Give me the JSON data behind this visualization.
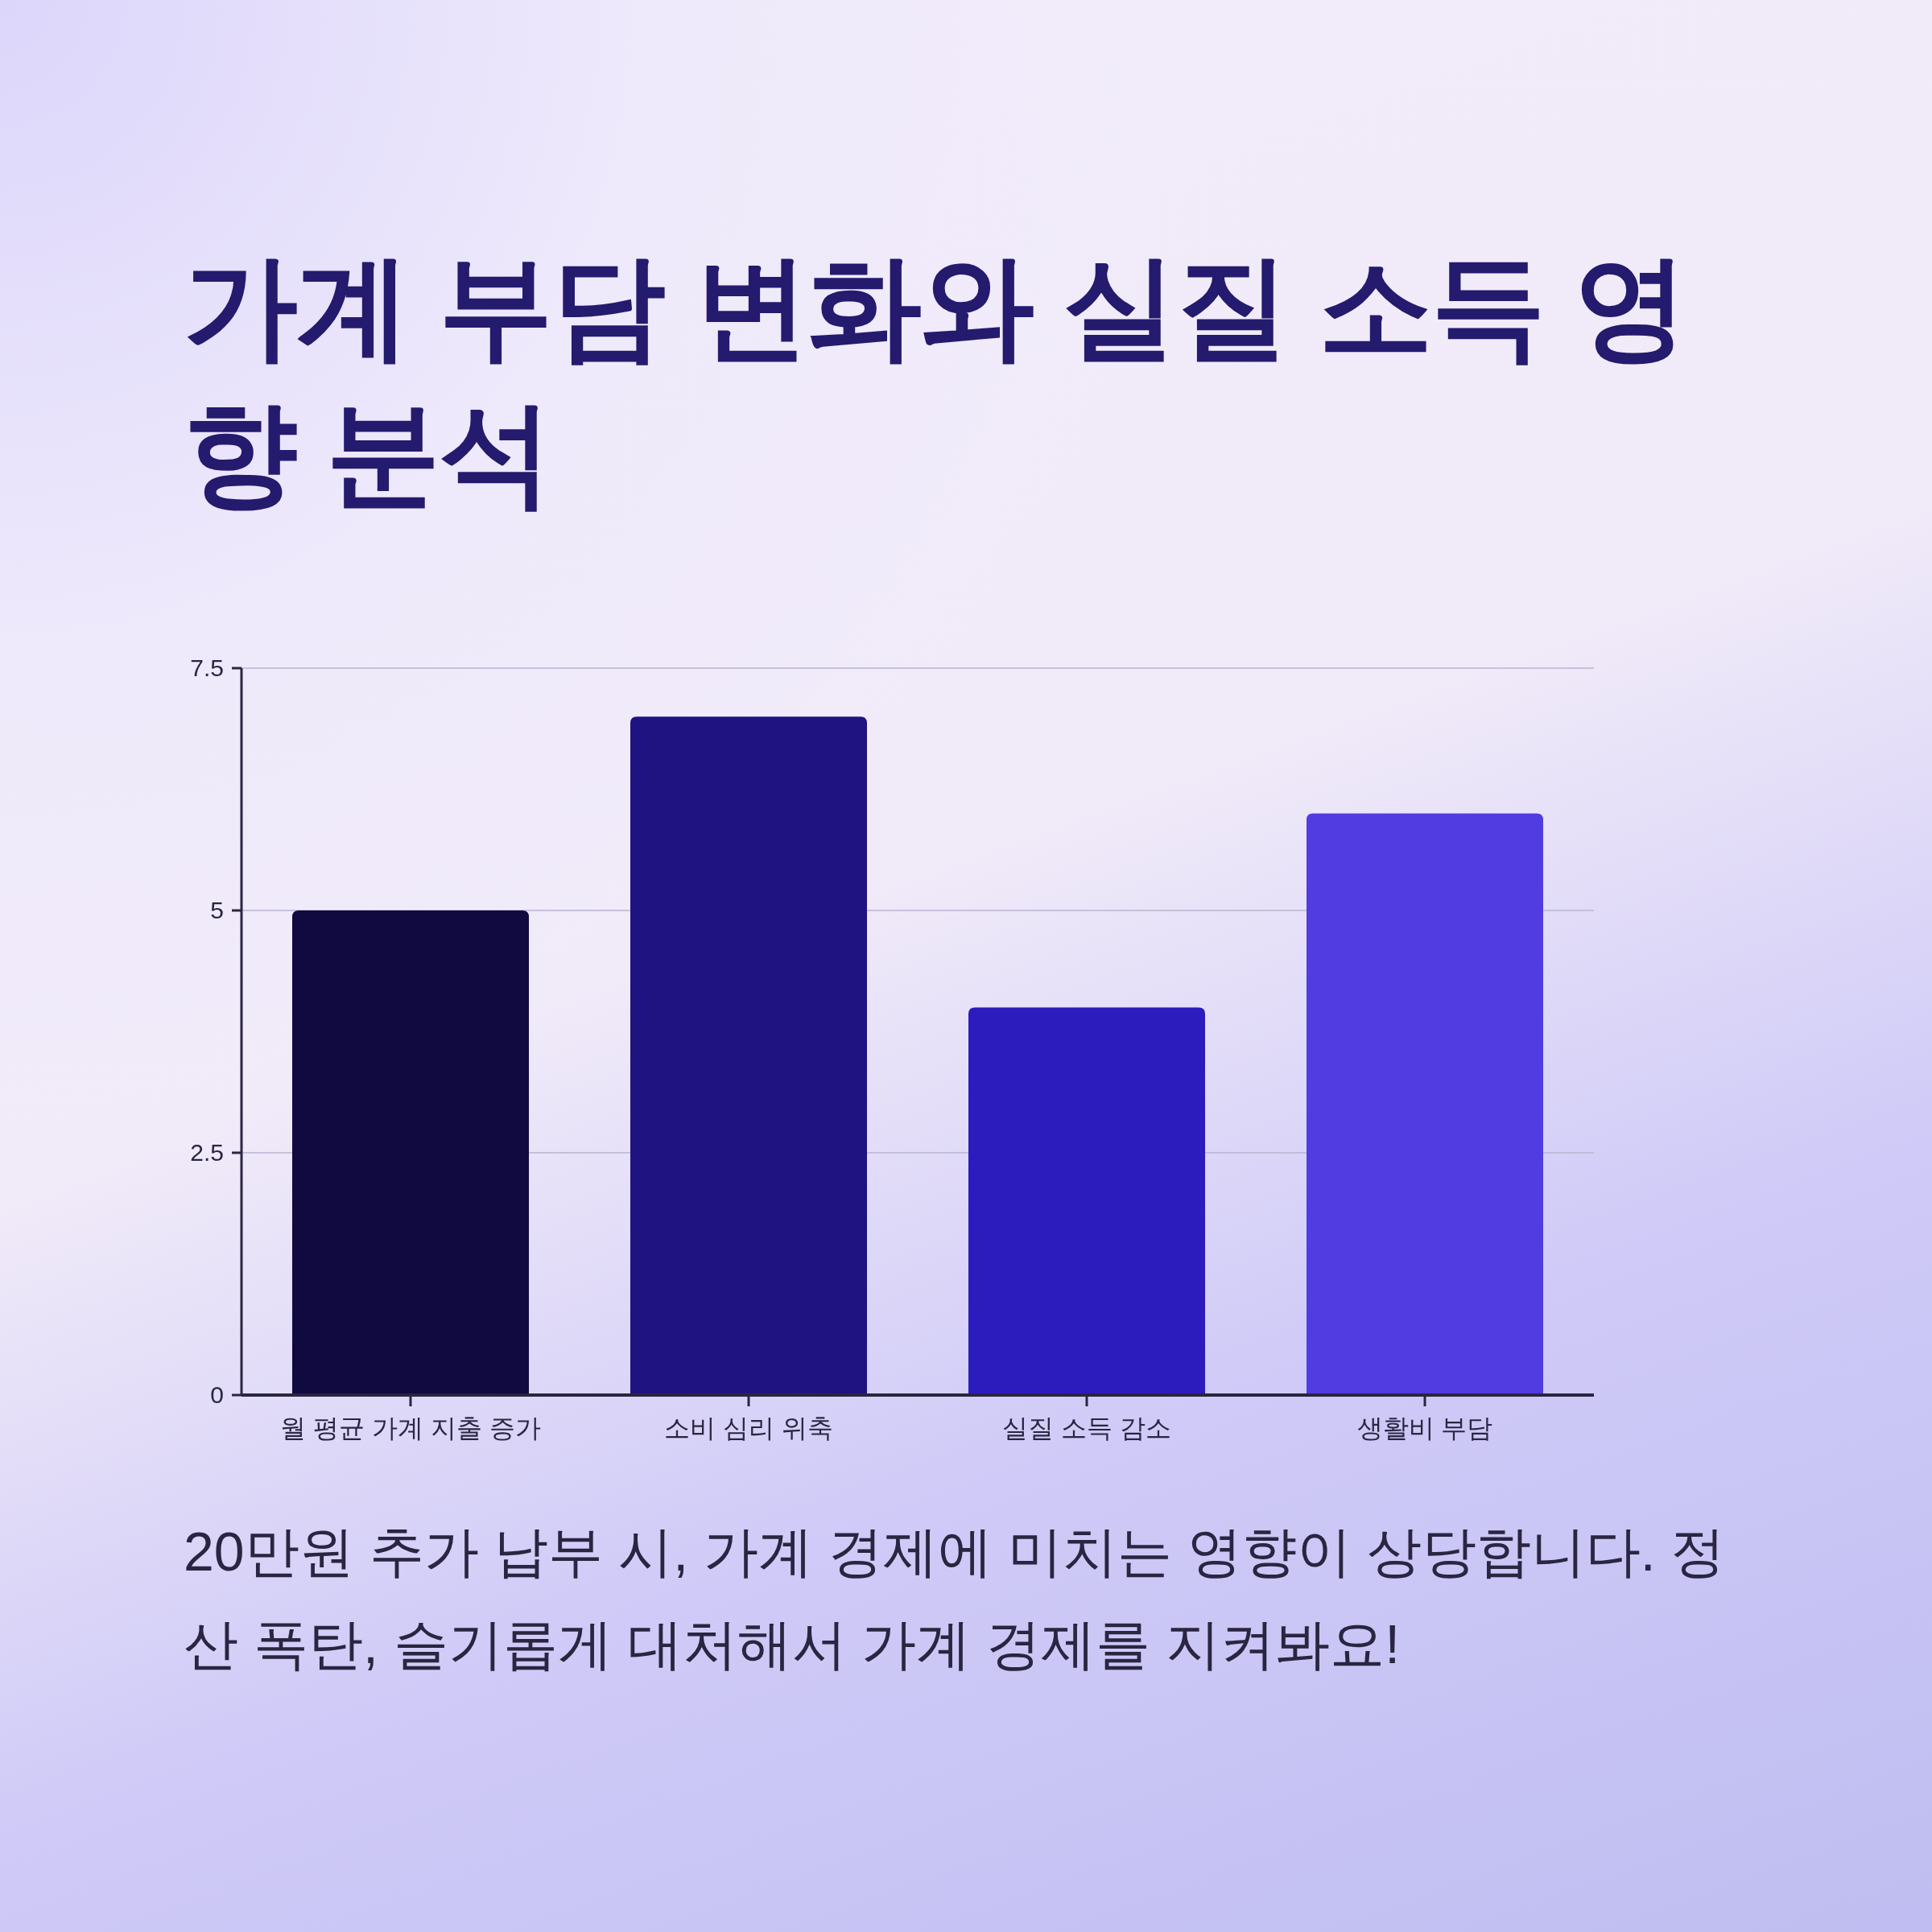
{
  "chart_data": {
    "type": "bar",
    "title": "가계 부담 변화와 실질 소득 영향 분석",
    "categories": [
      "월 평균 가계 지출 증가",
      "소비 심리 위축",
      "실질 소득 감소",
      "생활비 부담"
    ],
    "values": [
      5,
      7,
      4,
      6
    ],
    "colors": [
      "#110a40",
      "#1e1380",
      "#2c1bbd",
      "#503ce0"
    ],
    "ylim": [
      0,
      7.5
    ],
    "yticks": [
      0,
      2.5,
      5,
      7.5
    ],
    "grid": "y",
    "annotations": [
      "20만원 추가 납부 시, 가계 경제에 미치는 영향이 상당합니다. 정산 폭탄, 슬기롭게 대처해서 가계 경제를 지켜봐요!"
    ]
  }
}
